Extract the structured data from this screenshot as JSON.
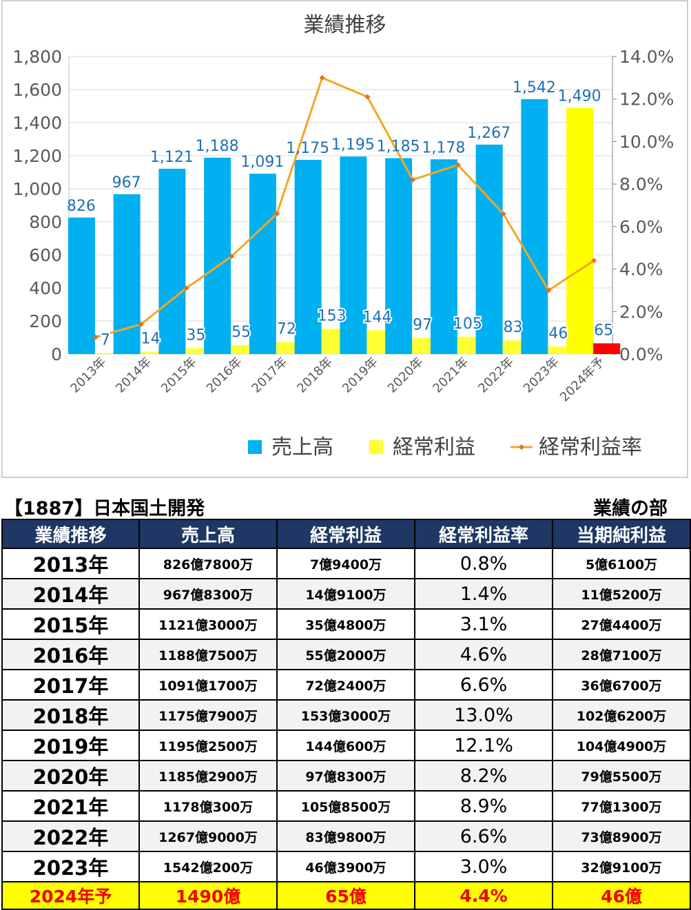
{
  "chart_data": {
    "type": "bar",
    "title": "業績推移",
    "categories": [
      "2013年",
      "2014年",
      "2015年",
      "2016年",
      "2017年",
      "2018年",
      "2019年",
      "2020年",
      "2021年",
      "2022年",
      "2023年",
      "2024年予"
    ],
    "series": [
      {
        "name": "売上高",
        "type": "bar",
        "axis": "left",
        "color": "#00b0f0",
        "forecast_color": "#ffff00",
        "values": [
          826,
          967,
          1121,
          1188,
          1091,
          1175,
          1195,
          1185,
          1178,
          1267,
          1542,
          1490
        ]
      },
      {
        "name": "経常利益",
        "type": "bar",
        "axis": "left",
        "color": "#ffff33",
        "forecast_color": "#ff0000",
        "values": [
          7,
          14,
          35,
          55,
          72,
          153,
          144,
          97,
          105,
          83,
          46,
          65
        ]
      },
      {
        "name": "経常利益率",
        "type": "line",
        "axis": "right",
        "color": "#f5a623",
        "values": [
          0.8,
          1.4,
          3.1,
          4.6,
          6.6,
          13.0,
          12.1,
          8.2,
          8.9,
          6.6,
          3.0,
          4.4
        ]
      }
    ],
    "ylim_left": [
      0,
      1800
    ],
    "yticks_left": [
      "0",
      "200",
      "400",
      "600",
      "800",
      "1,000",
      "1,200",
      "1,400",
      "1,600",
      "1,800"
    ],
    "ylim_right": [
      0,
      14
    ],
    "yticks_right": [
      "0.0%",
      "2.0%",
      "4.0%",
      "6.0%",
      "8.0%",
      "10.0%",
      "12.0%",
      "14.0%"
    ],
    "bar_labels_sales": [
      "826",
      "967",
      "1,121",
      "1,188",
      "1,091",
      "1,175",
      "1,195",
      "1,185",
      "1,178",
      "1,267",
      "1,542",
      "1,490"
    ],
    "bar_labels_profit": [
      "7",
      "14",
      "35",
      "55",
      "72",
      "153",
      "144",
      "97",
      "105",
      "83",
      "46",
      "65"
    ],
    "grid": true,
    "legend_position": "bottom-right",
    "label_color": "#1f6fb5"
  },
  "company_title": "【1887】日本国土開発",
  "section_title": "業績の部",
  "table": {
    "headers": [
      "業績推移",
      "売上高",
      "経常利益",
      "経常利益率",
      "当期純利益"
    ],
    "rows": [
      [
        "2013年",
        "826億7800万",
        "7億9400万",
        "0.8%",
        "5億6100万"
      ],
      [
        "2014年",
        "967億8300万",
        "14億9100万",
        "1.4%",
        "11億5200万"
      ],
      [
        "2015年",
        "1121億3000万",
        "35億4800万",
        "3.1%",
        "27億4400万"
      ],
      [
        "2016年",
        "1188億7500万",
        "55億2000万",
        "4.6%",
        "28億7100万"
      ],
      [
        "2017年",
        "1091億1700万",
        "72億2400万",
        "6.6%",
        "36億6700万"
      ],
      [
        "2018年",
        "1175億7900万",
        "153億3000万",
        "13.0%",
        "102億6200万"
      ],
      [
        "2019年",
        "1195億2500万",
        "144億600万",
        "12.1%",
        "104億4900万"
      ],
      [
        "2020年",
        "1185億2900万",
        "97億8300万",
        "8.2%",
        "79億5500万"
      ],
      [
        "2021年",
        "1178億300万",
        "105億8500万",
        "8.9%",
        "77億1300万"
      ],
      [
        "2022年",
        "1267億9000万",
        "83億9800万",
        "6.6%",
        "73億8900万"
      ],
      [
        "2023年",
        "1542億200万",
        "46億3900万",
        "3.0%",
        "32億9100万"
      ],
      [
        "2024年予",
        "1490億",
        "65億",
        "4.4%",
        "46億"
      ]
    ]
  }
}
